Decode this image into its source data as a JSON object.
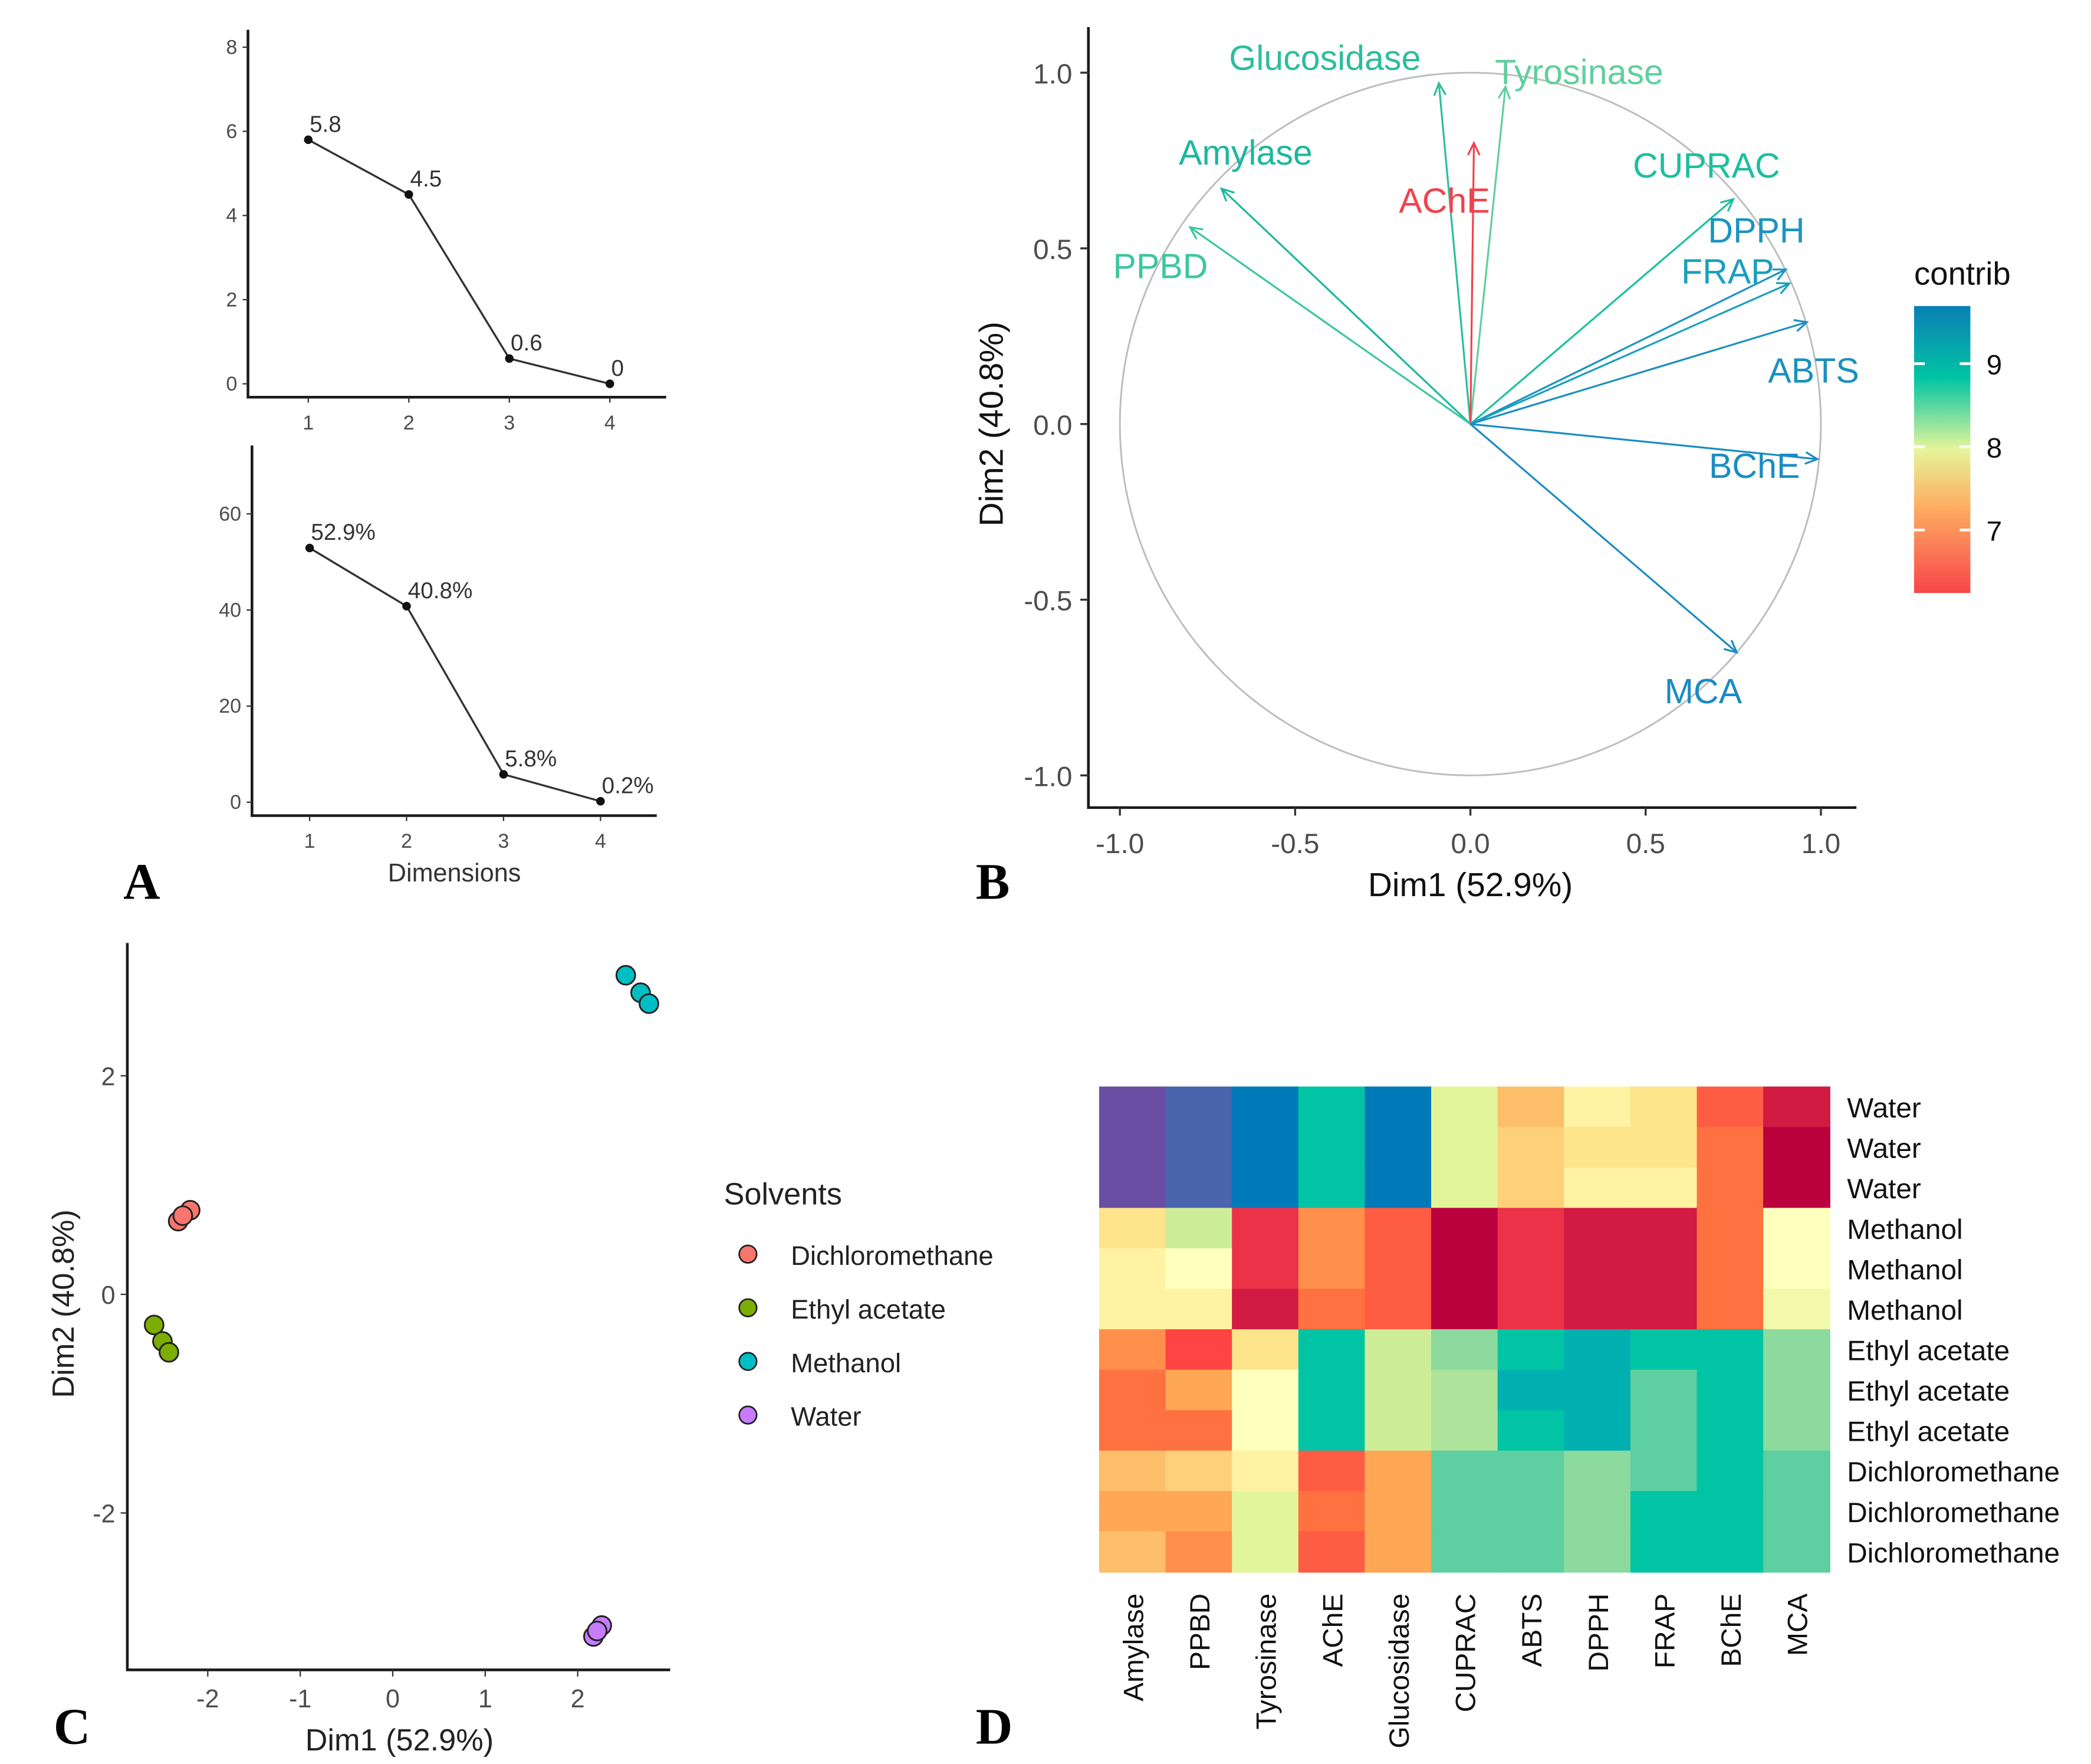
{
  "panels": {
    "a": "A",
    "b": "B",
    "c": "C",
    "d": "D"
  },
  "chart_data": [
    {
      "type": "line",
      "panel": "A-top",
      "x": [
        1,
        2,
        3,
        4
      ],
      "values": [
        5.8,
        4.5,
        0.6,
        0
      ],
      "data_labels": [
        "5.8",
        "4.5",
        "0.6",
        "0"
      ],
      "xticks": [
        "1",
        "2",
        "3",
        "4"
      ],
      "yticks": [
        "0",
        "2",
        "4",
        "6",
        "8"
      ],
      "ylim": [
        0,
        8
      ],
      "xlabel": "",
      "ylabel": ""
    },
    {
      "type": "line",
      "panel": "A-bottom",
      "x": [
        1,
        2,
        3,
        4
      ],
      "values": [
        52.9,
        40.8,
        5.8,
        0.2
      ],
      "data_labels": [
        "52.9%",
        "40.8%",
        "5.8%",
        "0.2%"
      ],
      "xticks": [
        "1",
        "2",
        "3",
        "4"
      ],
      "yticks": [
        "0",
        "20",
        "40",
        "60"
      ],
      "ylim": [
        0,
        60
      ],
      "xlabel": "Dimensions",
      "ylabel": ""
    },
    {
      "type": "scatter",
      "subtype": "correlation-circle",
      "panel": "B",
      "xlabel": "Dim1 (52.9%)",
      "ylabel": "Dim2 (40.8%)",
      "xlim": [
        -1,
        1
      ],
      "ylim": [
        -1,
        1
      ],
      "xticks": [
        "-1.0",
        "-0.5",
        "0.0",
        "0.5",
        "1.0"
      ],
      "yticks": [
        "-1.0",
        "-0.5",
        "0.0",
        "0.5",
        "1.0"
      ],
      "variables": [
        {
          "name": "Glucosidase",
          "x": -0.09,
          "y": 0.97,
          "color": "#2dbd9c"
        },
        {
          "name": "Tyrosinase",
          "x": 0.1,
          "y": 0.96,
          "color": "#5fcf9f"
        },
        {
          "name": "AChE",
          "x": 0.01,
          "y": 0.8,
          "color": "#f0434d"
        },
        {
          "name": "Amylase",
          "x": -0.71,
          "y": 0.67,
          "color": "#1cb79e"
        },
        {
          "name": "PPBD",
          "x": -0.8,
          "y": 0.56,
          "color": "#3cc6a0"
        },
        {
          "name": "CUPRAC",
          "x": 0.75,
          "y": 0.64,
          "color": "#1cbf9e"
        },
        {
          "name": "DPPH",
          "x": 0.9,
          "y": 0.44,
          "color": "#1a94c0"
        },
        {
          "name": "FRAP",
          "x": 0.91,
          "y": 0.4,
          "color": "#1a9fbd"
        },
        {
          "name": "ABTS",
          "x": 0.96,
          "y": 0.29,
          "color": "#1a90c0"
        },
        {
          "name": "BChE",
          "x": 0.99,
          "y": -0.1,
          "color": "#1a8dc2"
        },
        {
          "name": "MCA",
          "x": 0.76,
          "y": -0.65,
          "color": "#1a8bc3"
        }
      ],
      "legend": {
        "title": "contrib",
        "ticks": [
          "7",
          "8",
          "9"
        ],
        "colors": [
          "#f8454a",
          "#fdae61",
          "#e6f59a",
          "#00c4a4",
          "#0a7fb5"
        ],
        "placement": "right"
      }
    },
    {
      "type": "scatter",
      "panel": "C",
      "xlabel": "Dim1 (52.9%)",
      "ylabel": "Dim2 (40.8%)",
      "xticks": [
        "-2",
        "-1",
        "0",
        "1",
        "2"
      ],
      "yticks": [
        "-2",
        "0",
        "2"
      ],
      "xlim": [
        -2.9,
        3.0
      ],
      "ylim": [
        -3.45,
        3.2
      ],
      "legend": {
        "title": "Solvents",
        "placement": "right"
      },
      "series": [
        {
          "name": "Dichloromethane",
          "color": "#F8766D",
          "points": [
            [
              -2.32,
              0.67
            ],
            [
              -2.19,
              0.77
            ],
            [
              -2.27,
              0.72
            ]
          ]
        },
        {
          "name": "Ethyl acetate",
          "color": "#7CAE00",
          "points": [
            [
              -2.58,
              -0.28
            ],
            [
              -2.49,
              -0.43
            ],
            [
              -2.42,
              -0.53
            ]
          ]
        },
        {
          "name": "Methanol",
          "color": "#00BFC4",
          "points": [
            [
              2.52,
              2.92
            ],
            [
              2.68,
              2.76
            ],
            [
              2.77,
              2.66
            ]
          ]
        },
        {
          "name": "Water",
          "color": "#C77CFF",
          "points": [
            [
              2.17,
              -3.13
            ],
            [
              2.26,
              -3.03
            ],
            [
              2.21,
              -3.08
            ]
          ]
        }
      ]
    },
    {
      "type": "heatmap",
      "panel": "D",
      "columns": [
        "Amylase",
        "PPBD",
        "Tyrosinase",
        "AChE",
        "Glucosidase",
        "CUPRAC",
        "ABTS",
        "DPPH",
        "FRAP",
        "BChE",
        "MCA"
      ],
      "rows": [
        "Water",
        "Water",
        "Water",
        "Methanol",
        "Methanol",
        "Methanol",
        "Ethyl acetate",
        "Ethyl acetate",
        "Ethyl acetate",
        "Dichloromethane",
        "Dichloromethane",
        "Dichloromethane"
      ],
      "cell_colors": [
        [
          "#6a4ea3",
          "#4a64ad",
          "#0079b8",
          "#00c4a4",
          "#0079b8",
          "#e3f59a",
          "#fdbe6a",
          "#fff2a3",
          "#fee48a",
          "#ff5c44",
          "#d11b42"
        ],
        [
          "#6a4ea3",
          "#4a64ad",
          "#0079b8",
          "#00c4a4",
          "#0079b8",
          "#e3f59a",
          "#fed07a",
          "#fee48a",
          "#fee48a",
          "#ff7140",
          "#bb003e"
        ],
        [
          "#6a4ea3",
          "#4a64ad",
          "#0079b8",
          "#00c4a4",
          "#0079b8",
          "#e3f59a",
          "#fed07a",
          "#fff2a3",
          "#fff2a3",
          "#ff7140",
          "#bb003e"
        ],
        [
          "#fee48a",
          "#ceed98",
          "#ec3248",
          "#ff8f4b",
          "#ff5c44",
          "#bb003e",
          "#ec3248",
          "#d11b42",
          "#d11b42",
          "#ff7140",
          "#ffffbe"
        ],
        [
          "#fff2a3",
          "#ffffbe",
          "#ec3248",
          "#ff8f4b",
          "#ff5c44",
          "#bb003e",
          "#ec3248",
          "#d11b42",
          "#d11b42",
          "#ff7140",
          "#ffffbe"
        ],
        [
          "#fff2a3",
          "#fff2a3",
          "#d11b42",
          "#ff7140",
          "#ff5c44",
          "#bb003e",
          "#ec3248",
          "#d11b42",
          "#d11b42",
          "#ff7140",
          "#f3f9ab"
        ],
        [
          "#ff8f4b",
          "#ff4444",
          "#fee48a",
          "#00c4a4",
          "#ceed98",
          "#8cda9e",
          "#00c4a4",
          "#00b0b0",
          "#00c4a4",
          "#00c4a4",
          "#8cda9e"
        ],
        [
          "#ff7140",
          "#fea754",
          "#ffffbe",
          "#00c4a4",
          "#ceed98",
          "#ade39a",
          "#00b0b0",
          "#00b0b0",
          "#5dcfa0",
          "#00c4a4",
          "#8cda9e"
        ],
        [
          "#ff7140",
          "#ff7140",
          "#ffffbe",
          "#00c4a4",
          "#ceed98",
          "#ade39a",
          "#00c4a4",
          "#00b0b0",
          "#5dcfa0",
          "#00c4a4",
          "#8cda9e"
        ],
        [
          "#fdbe6a",
          "#fed07a",
          "#fff2a3",
          "#ff5c44",
          "#fea754",
          "#5dcfa0",
          "#5dcfa0",
          "#8cda9e",
          "#5dcfa0",
          "#00c4a4",
          "#5dcfa0"
        ],
        [
          "#fea754",
          "#fea754",
          "#e3f59a",
          "#ff7140",
          "#fea754",
          "#5dcfa0",
          "#5dcfa0",
          "#8cda9e",
          "#00c4a4",
          "#00c4a4",
          "#5dcfa0"
        ],
        [
          "#fdbe6a",
          "#ff8f4b",
          "#e3f59a",
          "#ff5c44",
          "#fea754",
          "#5dcfa0",
          "#5dcfa0",
          "#8cda9e",
          "#00c4a4",
          "#00c4a4",
          "#5dcfa0"
        ]
      ]
    }
  ]
}
